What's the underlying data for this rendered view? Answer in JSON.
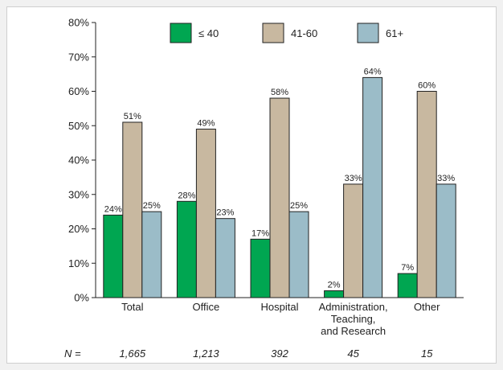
{
  "chart_data": {
    "type": "bar",
    "title": "",
    "xlabel": "",
    "ylabel": "",
    "ylim": [
      0,
      80
    ],
    "yticks": [
      "0%",
      "10%",
      "20%",
      "30%",
      "40%",
      "50%",
      "60%",
      "70%",
      "80%"
    ],
    "categories": [
      [
        "Total"
      ],
      [
        "Office"
      ],
      [
        "Hospital"
      ],
      [
        "Administration,",
        "Teaching,",
        "and Research"
      ],
      [
        "Other"
      ]
    ],
    "series": [
      {
        "name": "≤ 40",
        "color": "#00a651",
        "values": [
          24,
          28,
          17,
          2,
          7
        ],
        "labels": [
          "24%",
          "28%",
          "17%",
          "2%",
          "7%"
        ]
      },
      {
        "name": "41-60",
        "color": "#c8b8a0",
        "values": [
          51,
          49,
          58,
          33,
          60
        ],
        "labels": [
          "51%",
          "49%",
          "58%",
          "33%",
          "60%"
        ]
      },
      {
        "name": "61+",
        "color": "#9bbcc8",
        "values": [
          25,
          23,
          25,
          64,
          33
        ],
        "labels": [
          "25%",
          "23%",
          "25%",
          "64%",
          "33%"
        ]
      }
    ],
    "legend": "top",
    "grid": false,
    "n_row": {
      "prefix": "N =",
      "values": [
        "1,665",
        "1,213",
        "392",
        "45",
        "15"
      ]
    }
  }
}
